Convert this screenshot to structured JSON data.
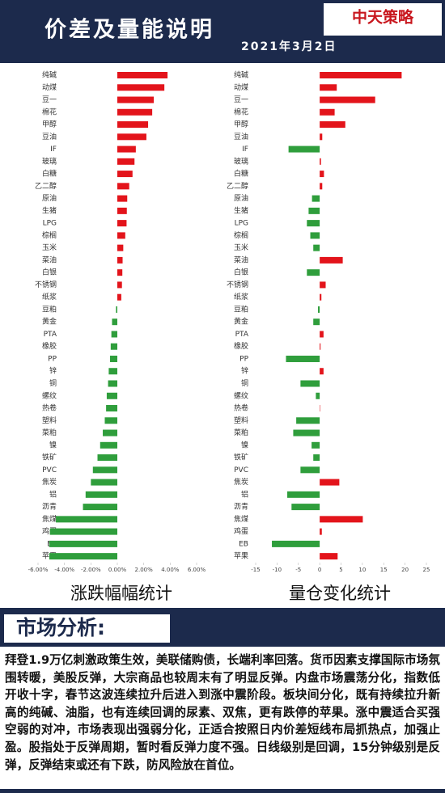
{
  "header": {
    "title": "价差及量能说明",
    "date": "2021年3月2日",
    "logo": "中天策略"
  },
  "chart_data": [
    {
      "type": "bar",
      "orientation": "horizontal",
      "title": "涨跌幅幅统计",
      "categories": [
        "纯碱",
        "动煤",
        "豆一",
        "棉花",
        "甲醇",
        "豆油",
        "IF",
        "玻璃",
        "白糖",
        "乙二醇",
        "原油",
        "生猪",
        "LPG",
        "棕榈",
        "玉米",
        "菜油",
        "白银",
        "不锈钢",
        "纸浆",
        "豆粕",
        "黄金",
        "PTA",
        "橡胶",
        "PP",
        "锌",
        "铜",
        "螺纹",
        "热卷",
        "塑料",
        "菜粕",
        "镍",
        "铁矿",
        "PVC",
        "焦炭",
        "铝",
        "沥青",
        "焦煤",
        "鸡蛋",
        "EB",
        "苹果"
      ],
      "values": [
        3.8,
        3.56,
        2.76,
        2.64,
        2.33,
        2.2,
        1.4,
        1.3,
        1.15,
        0.9,
        0.75,
        0.72,
        0.7,
        0.6,
        0.45,
        0.4,
        0.38,
        0.35,
        0.3,
        -0.1,
        -0.4,
        -0.45,
        -0.5,
        -0.55,
        -0.65,
        -0.7,
        -0.8,
        -0.85,
        -0.95,
        -1.1,
        -1.3,
        -1.5,
        -1.85,
        -2.0,
        -2.4,
        -2.6,
        -4.65,
        -5.1,
        -5.15,
        -5.15
      ],
      "positive_color": "#e3141b",
      "negative_color": "#2f9e3c",
      "xlim": [
        -6,
        6
      ],
      "xticks": [
        {
          "value": -6,
          "label": "-6.00%"
        },
        {
          "value": -4,
          "label": "-4.00%"
        },
        {
          "value": -2,
          "label": "-2.00%"
        },
        {
          "value": 0,
          "label": "0.00%"
        },
        {
          "value": 2,
          "label": "2.00%"
        },
        {
          "value": 4,
          "label": "4.00%"
        },
        {
          "value": 6,
          "label": "6.00%"
        }
      ]
    },
    {
      "type": "bar",
      "orientation": "horizontal",
      "title": "量仓变化统计",
      "categories": [
        "纯碱",
        "动煤",
        "豆一",
        "棉花",
        "甲醇",
        "豆油",
        "IF",
        "玻璃",
        "白糖",
        "乙二醇",
        "原油",
        "生猪",
        "LPG",
        "棕榈",
        "玉米",
        "菜油",
        "白银",
        "不锈钢",
        "纸浆",
        "豆粕",
        "黄金",
        "PTA",
        "橡胶",
        "PP",
        "锌",
        "铜",
        "螺纹",
        "热卷",
        "塑料",
        "菜粕",
        "镍",
        "铁矿",
        "PVC",
        "焦炭",
        "铝",
        "沥青",
        "焦煤",
        "鸡蛋",
        "EB",
        "苹果"
      ],
      "values": [
        19.2,
        4,
        13,
        3.5,
        6,
        0.6,
        -7.3,
        0.3,
        1,
        0.6,
        -1.8,
        -2.6,
        -3,
        -2.2,
        -1.5,
        5.4,
        -3,
        1.4,
        0.4,
        -0.4,
        -1.5,
        0.9,
        0.2,
        -7.9,
        0.9,
        -4.5,
        -0.9,
        0.1,
        -5.5,
        -6.2,
        -1.9,
        -1.5,
        -4.5,
        4.6,
        -7.6,
        -6.6,
        10.1,
        0.5,
        -11.2,
        4.2
      ],
      "positive_color": "#e3141b",
      "negative_color": "#2f9e3c",
      "xlim": [
        -15,
        25
      ],
      "xticks": [
        -15,
        -10,
        -5,
        0,
        5,
        10,
        15,
        20,
        25
      ]
    }
  ],
  "analysis": {
    "title": "市场分析:",
    "text": "拜登1.9万亿刺激政策生效，美联储购债，长端利率回落。货币因素支撑国际市场氛围转暖，美股反弹，大宗商品也较周末有了明显反弹。内盘市场震荡分化，指数低开收十字，春节这波连续拉升后进入到涨中震阶段。板块间分化，既有持续拉升新高的纯碱、油脂，也有连续回调的尿素、双焦，更有跌停的苹果。涨中震适合买强空弱的对冲，市场表现出强弱分化，正适合按照日内价差短线布局抓热点，加强止盈。股指处于反弹周期，暂时看反弹力度不强。日线级别是回调，15分钟级别是反弹，反弹结束或还有下跌，防风险放在首位。"
  }
}
